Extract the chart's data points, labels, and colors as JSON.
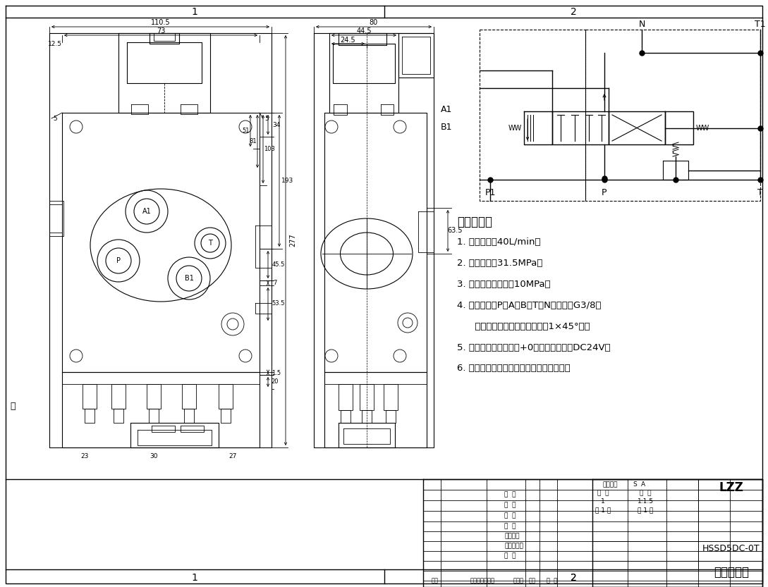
{
  "bg_color": "#ffffff",
  "tech_requirements_title": "技术要求：",
  "tech_requirements": [
    "1. 额定流量：40L/min；",
    "2. 额定压力：31.5MPa；",
    "3. 安全阀调定压力：10MPa；",
    "4. 油口尺寸：P、A、B、T、N油口均为G3/8；",
    "      油口均为平面密封，油孔口倒1×45°角；",
    "5. 控制方式：电磁控制+0型阀杆；电压：DC24V；",
    "6. 阀体表面磷化处理，安全阀及螺堵镀锌。"
  ],
  "tb_rows": [
    "设  计",
    "制  图",
    "描  图",
    "校  对",
    "工艺检查",
    "标准化检查",
    "审  核"
  ],
  "tb_col1": "图样标记",
  "tb_col2_a": "S",
  "tb_col2_b": "A",
  "tb_qty": "数  量",
  "tb_scale_label": "比  例",
  "tb_qty_val": "1",
  "tb_scale_val": "1:1.5",
  "tb_sheets1": "共 1 张",
  "tb_sheets2": "第 1 张",
  "tb_company": "LZZ",
  "tb_model": "HSSD5DC-0T",
  "tb_name": "一联多路阀",
  "tb_last_row": [
    "签记",
    "更改内容或依据",
    "更改人",
    "日期",
    "批  准"
  ],
  "dim_110_5": "110.5",
  "dim_73": "73",
  "dim_12_5": "12.5",
  "dim_80": "80",
  "dim_44_5": "44.5",
  "dim_24_5": "24.5",
  "dim_277": "277",
  "dim_63_5": "63.5",
  "dim_34": "34",
  "dim_193": "193",
  "dim_45_5": "45.5",
  "dim_7": "7",
  "dim_53_5": "53.5",
  "dim_103": "103",
  "dim_81": "81",
  "dim_51": "51",
  "dim_1_5": "1.5",
  "dim_20": "20",
  "dim_23": "23",
  "dim_30": "30",
  "dim_27": "27",
  "dim_5l": "5",
  "dim_5r": "5",
  "label_A1": "A1",
  "label_B1": "B1",
  "label_N": "N",
  "label_T1": "T1",
  "label_P1": "P1",
  "label_P": "P",
  "label_T": "T",
  "label_1a": "1",
  "label_2a": "2",
  "label_1b": "1",
  "label_2b": "2"
}
